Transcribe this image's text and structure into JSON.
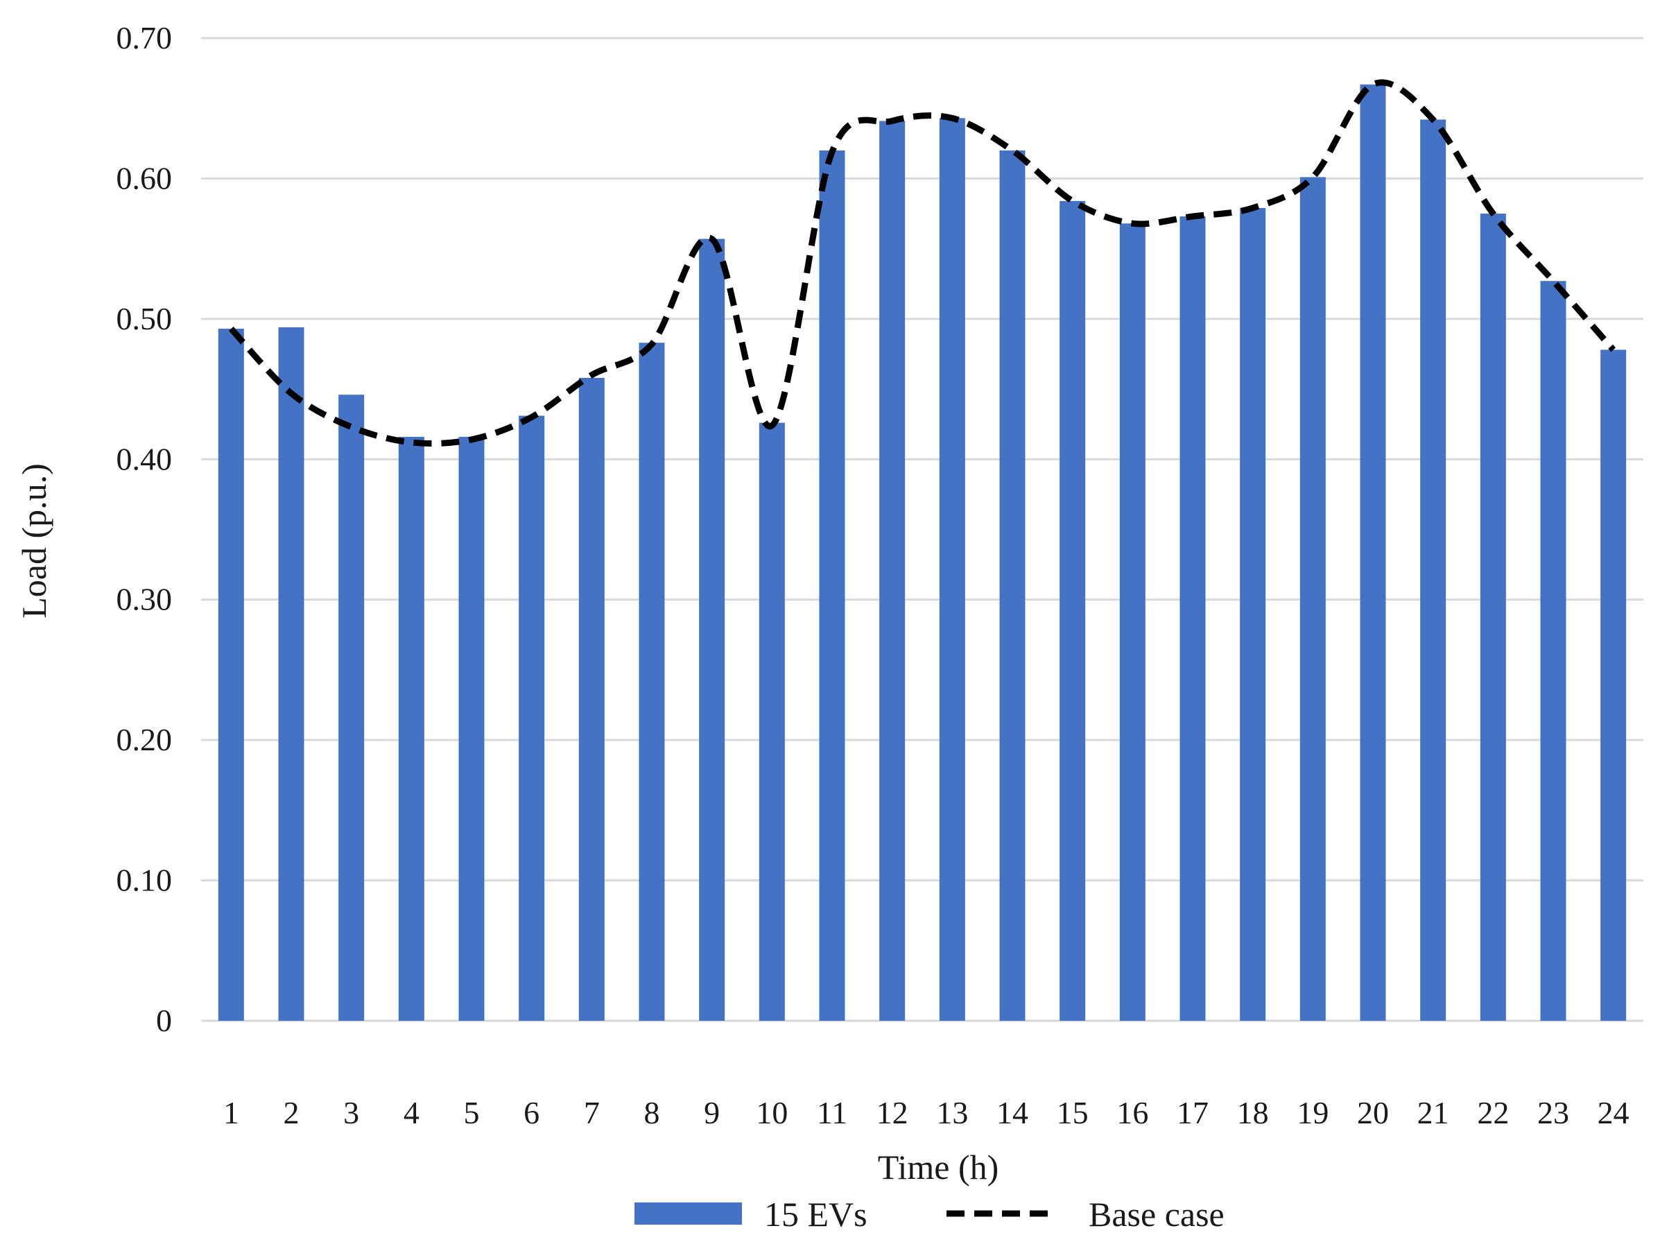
{
  "chart_data": {
    "type": "bar",
    "title": "",
    "xlabel": "Time (h)",
    "ylabel": "Load (p.u.)",
    "ylim": [
      0,
      0.7
    ],
    "yticks": [
      "0",
      "0.10",
      "0.20",
      "0.30",
      "0.40",
      "0.50",
      "0.60",
      "0.70"
    ],
    "ytick_values": [
      0,
      0.1,
      0.2,
      0.3,
      0.4,
      0.5,
      0.6,
      0.7
    ],
    "categories": [
      "1",
      "2",
      "3",
      "4",
      "5",
      "6",
      "7",
      "8",
      "9",
      "10",
      "11",
      "12",
      "13",
      "14",
      "15",
      "16",
      "17",
      "18",
      "19",
      "20",
      "21",
      "22",
      "23",
      "24"
    ],
    "grid": true,
    "legend_position": "bottom",
    "series": [
      {
        "name": "15 EVs",
        "kind": "bar",
        "color": "#4472c4",
        "values": [
          0.493,
          0.494,
          0.446,
          0.416,
          0.416,
          0.431,
          0.458,
          0.483,
          0.557,
          0.426,
          0.62,
          0.641,
          0.643,
          0.62,
          0.584,
          0.568,
          0.573,
          0.579,
          0.601,
          0.667,
          0.642,
          0.575,
          0.527,
          0.478
        ]
      },
      {
        "name": "Base case",
        "kind": "line",
        "style": "dashed",
        "color": "#000000",
        "values": [
          0.493,
          0.447,
          0.423,
          0.412,
          0.414,
          0.43,
          0.46,
          0.482,
          0.557,
          0.424,
          0.619,
          0.641,
          0.643,
          0.62,
          0.584,
          0.568,
          0.573,
          0.579,
          0.601,
          0.667,
          0.642,
          0.575,
          0.527,
          0.478
        ]
      }
    ]
  }
}
